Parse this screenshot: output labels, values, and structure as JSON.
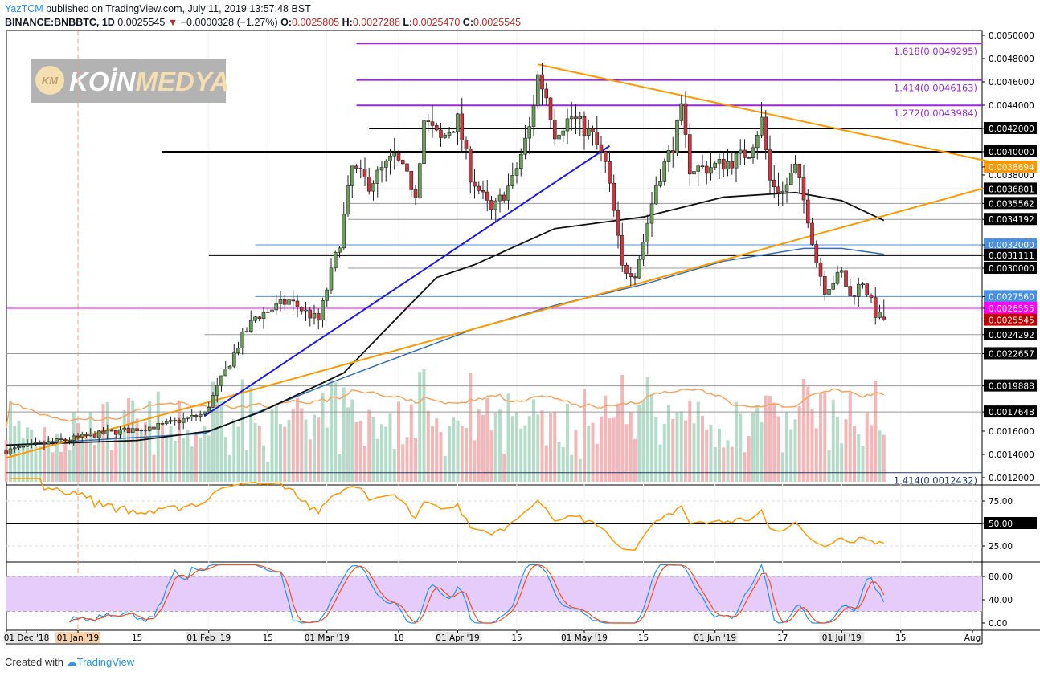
{
  "header": {
    "publisher": "YazTCM",
    "published_text": "published on TradingView.com, July 11, 2019 13:57:48 BST",
    "symbol": "BINANCE:BNBBTC, 1D",
    "last": "0.0025545",
    "change": "−0.0000328 (−1.27%)",
    "o_label": "O:",
    "o": "0.0025805",
    "h_label": "H:",
    "h": "0.0027288",
    "l_label": "L:",
    "l": "0.0025470",
    "c_label": "C:",
    "c": "0.0025545"
  },
  "watermark": {
    "text": "KOINMEDYA",
    "badge": "KM"
  },
  "footer": {
    "created_with": "Created with",
    "brand": "TradingView"
  },
  "colors": {
    "up": "#6a9f5b",
    "down": "#d0343c",
    "vol_up": "#b5dcc8",
    "vol_down": "#f4b6b6",
    "ma_black": "#111111",
    "ma_blue": "#2f6fb5",
    "orange": "#ff9800",
    "fib": "#9c27d8",
    "magenta": "#ff00ff",
    "blue_line": "#1a1ae6"
  },
  "chart_data": {
    "type": "candlestick",
    "title": "BINANCE:BNBBTC, 1D",
    "ylim": [
      0.0012,
      0.005
    ],
    "close_keypoints": [
      [
        "2018-12-15",
        0.00143
      ],
      [
        "2018-12-25",
        0.0015
      ],
      [
        "2019-01-07",
        0.00158
      ],
      [
        "2019-01-21",
        0.00165
      ],
      [
        "2019-01-31",
        0.00175
      ],
      [
        "2019-02-09",
        0.00241
      ],
      [
        "2019-02-12",
        0.00258
      ],
      [
        "2019-02-20",
        0.00272
      ],
      [
        "2019-02-27",
        0.00255
      ],
      [
        "2019-03-02",
        0.00296
      ],
      [
        "2019-03-04",
        0.00323
      ],
      [
        "2019-03-07",
        0.00386
      ],
      [
        "2019-03-11",
        0.00372
      ],
      [
        "2019-03-17",
        0.00396
      ],
      [
        "2019-03-22",
        0.00365
      ],
      [
        "2019-03-24",
        0.00427
      ],
      [
        "2019-03-28",
        0.0041
      ],
      [
        "2019-04-01",
        0.00427
      ],
      [
        "2019-04-04",
        0.0038
      ],
      [
        "2019-04-09",
        0.00348
      ],
      [
        "2019-04-14",
        0.00375
      ],
      [
        "2019-04-18",
        0.0042
      ],
      [
        "2019-04-20",
        0.00465
      ],
      [
        "2019-04-22",
        0.00448
      ],
      [
        "2019-04-24",
        0.00417
      ],
      [
        "2019-04-28",
        0.0043
      ],
      [
        "2019-05-03",
        0.00413
      ],
      [
        "2019-05-06",
        0.00389
      ],
      [
        "2019-05-08",
        0.00348
      ],
      [
        "2019-05-10",
        0.003
      ],
      [
        "2019-05-13",
        0.00296
      ],
      [
        "2019-05-15",
        0.00323
      ],
      [
        "2019-05-18",
        0.00372
      ],
      [
        "2019-05-22",
        0.00406
      ],
      [
        "2019-05-24",
        0.00434
      ],
      [
        "2019-05-26",
        0.00386
      ],
      [
        "2019-05-30",
        0.00386
      ],
      [
        "2019-06-05",
        0.00392
      ],
      [
        "2019-06-09",
        0.004
      ],
      [
        "2019-06-12",
        0.00427
      ],
      [
        "2019-06-14",
        0.00375
      ],
      [
        "2019-06-17",
        0.00365
      ],
      [
        "2019-06-20",
        0.00386
      ],
      [
        "2019-06-23",
        0.00344
      ],
      [
        "2019-06-25",
        0.00306
      ],
      [
        "2019-06-27",
        0.00282
      ],
      [
        "2019-07-01",
        0.00296
      ],
      [
        "2019-07-03",
        0.00275
      ],
      [
        "2019-07-06",
        0.00289
      ],
      [
        "2019-07-09",
        0.00261
      ],
      [
        "2019-07-11",
        0.0025545
      ]
    ],
    "last_candle": {
      "date": "2019-07-11",
      "open": 0.0025805,
      "high": 0.0027288,
      "low": 0.002547,
      "close": 0.0025545
    },
    "ma_black": [
      [
        "2018-12-15",
        0.00148
      ],
      [
        "2019-01-15",
        0.00152
      ],
      [
        "2019-02-01",
        0.0016
      ],
      [
        "2019-02-13",
        0.00176
      ],
      [
        "2019-03-05",
        0.0021
      ],
      [
        "2019-03-17",
        0.00255
      ],
      [
        "2019-03-27",
        0.00292
      ],
      [
        "2019-04-05",
        0.00303
      ],
      [
        "2019-04-24",
        0.00334
      ],
      [
        "2019-05-15",
        0.00344
      ],
      [
        "2019-06-03",
        0.00361
      ],
      [
        "2019-06-20",
        0.00365
      ],
      [
        "2019-07-01",
        0.00358
      ],
      [
        "2019-07-11",
        0.00341
      ]
    ],
    "ma_blue": [
      [
        "2018-12-15",
        0.00148
      ],
      [
        "2019-01-31",
        0.00158
      ],
      [
        "2019-03-05",
        0.00206
      ],
      [
        "2019-04-05",
        0.00248
      ],
      [
        "2019-04-24",
        0.00268
      ],
      [
        "2019-05-15",
        0.00286
      ],
      [
        "2019-06-03",
        0.00306
      ],
      [
        "2019-06-22",
        0.00317
      ],
      [
        "2019-07-01",
        0.00317
      ],
      [
        "2019-07-11",
        0.00312
      ]
    ],
    "trendlines": [
      {
        "name": "orange-resistance",
        "color": "orange",
        "from": [
          "2019-04-20",
          0.00475
        ],
        "to": [
          "2019-08-07",
          0.0039
        ]
      },
      {
        "name": "orange-support",
        "color": "orange",
        "from": [
          "2018-12-15",
          0.00137
        ],
        "to": [
          "2019-08-07",
          0.00372
        ]
      },
      {
        "name": "blue-support",
        "color": "blue_line",
        "from": [
          "2019-01-31",
          0.00173
        ],
        "to": [
          "2019-05-07",
          0.00405
        ]
      }
    ],
    "hlines": [
      {
        "value": 0.0049295,
        "from": "2019-03-08",
        "color": "fib",
        "label": "1.618(0.0049295)"
      },
      {
        "value": 0.0046163,
        "from": "2019-03-08",
        "color": "fib",
        "label": "1.414(0.0046163)"
      },
      {
        "value": 0.0043984,
        "from": "2019-03-08",
        "color": "fib",
        "label": "1.272(0.0043984)"
      },
      {
        "value": 0.0042,
        "from": "2019-03-11",
        "color": "#000"
      },
      {
        "value": 0.004,
        "from": "2019-01-21",
        "color": "#000"
      },
      {
        "value": 0.0036801,
        "from": "2019-03-06",
        "color": "#999"
      },
      {
        "value": 0.0035562,
        "from": "2019-03-06",
        "color": "#999"
      },
      {
        "value": 0.0034192,
        "from": "2019-03-06",
        "color": "#999"
      },
      {
        "value": 0.0032,
        "from": "2019-02-12",
        "color": "#4a90e2"
      },
      {
        "value": 0.0031111,
        "from": "2019-02-01",
        "color": "#000"
      },
      {
        "value": 0.003,
        "from": "2019-03-06",
        "color": "#999"
      },
      {
        "value": 0.002756,
        "from": "2019-02-12",
        "color": "#4a90e2"
      },
      {
        "value": 0.0026555,
        "from": "2018-12-15",
        "color": "#ff00ff"
      },
      {
        "value": 0.0024292,
        "from": "2019-01-31",
        "color": "#999"
      },
      {
        "value": 0.0022657,
        "from": "2018-12-15",
        "color": "#999"
      },
      {
        "value": 0.0019888,
        "from": "2018-12-15",
        "color": "#999"
      },
      {
        "value": 0.0017648,
        "from": "2018-12-15",
        "color": "#999"
      },
      {
        "value": 0.0012432,
        "from": "2018-12-15",
        "color": "#1f3a6b",
        "label": "1.414(0.0012432)"
      }
    ],
    "price_ticks": [
      "0.0050000",
      "0.0048000",
      "0.0046000",
      "0.0044000",
      "0.0038000",
      "0.0016000",
      "0.0014000",
      "0.0012000"
    ],
    "price_tags": [
      {
        "t": "0.0042000",
        "bg": "#000"
      },
      {
        "t": "0.0040000",
        "bg": "#000"
      },
      {
        "t": "0.0038694",
        "bg": "#ff9800"
      },
      {
        "t": "0.0036801",
        "bg": "#000"
      },
      {
        "t": "0.0035562",
        "bg": "#000"
      },
      {
        "t": "0.0034192",
        "bg": "#000"
      },
      {
        "t": "0.0032000",
        "bg": "#4a90e2"
      },
      {
        "t": "0.0031111",
        "bg": "#000"
      },
      {
        "t": "0.0030000",
        "bg": "#000"
      },
      {
        "t": "0.0027560",
        "bg": "#4a90e2"
      },
      {
        "t": "0.0026555",
        "bg": "#ff00ff"
      },
      {
        "t": "0.0025545",
        "bg": "#c00000"
      },
      {
        "t": "0.0024292",
        "bg": "#000"
      },
      {
        "t": "0.0022657",
        "bg": "#000"
      },
      {
        "t": "0.0019888",
        "bg": "#000"
      },
      {
        "t": "0.0017648",
        "bg": "#000"
      }
    ],
    "rsi_ticks": [
      "75.00",
      "50.00",
      "25.00"
    ],
    "stoch_ticks": [
      "80.00",
      "40.00",
      "0.00"
    ],
    "x_ticks": [
      [
        "01 Dec '18",
        "2018-12-05",
        true
      ],
      [
        "01 Jan '19",
        "2019-01-01",
        true
      ],
      [
        "15",
        "2019-01-15",
        false
      ],
      [
        "01 Feb '19",
        "2019-02-01",
        true
      ],
      [
        "15",
        "2019-02-15",
        false
      ],
      [
        "01 Mar '19",
        "2019-03-01",
        true
      ],
      [
        "18",
        "2019-03-18",
        false
      ],
      [
        "01 Apr '19",
        "2019-04-01",
        true
      ],
      [
        "15",
        "2019-04-15",
        false
      ],
      [
        "01 May '19",
        "2019-05-01",
        true
      ],
      [
        "15",
        "2019-05-15",
        false
      ],
      [
        "01 Jun '19",
        "2019-06-01",
        true
      ],
      [
        "17",
        "2019-06-17",
        false
      ],
      [
        "01 Jul '19",
        "2019-07-01",
        true
      ],
      [
        "15",
        "2019-07-15",
        false
      ],
      [
        "Aug",
        "2019-08-01",
        false
      ]
    ],
    "x_range": [
      "2018-12-15",
      "2019-08-07"
    ]
  }
}
